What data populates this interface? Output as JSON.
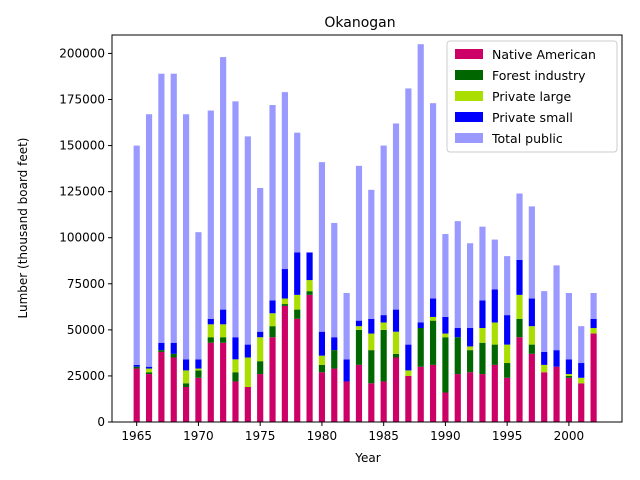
{
  "chart_data": {
    "type": "bar",
    "stacked": true,
    "title": "Okanogan",
    "xlabel": "Year",
    "ylabel": "Lumber (thousand board feet)",
    "xlim": [
      1963.0,
      2004.3
    ],
    "ylim": [
      0,
      210000
    ],
    "xticks": [
      1965,
      1970,
      1975,
      1980,
      1985,
      1990,
      1995,
      2000
    ],
    "yticks": [
      0,
      25000,
      50000,
      75000,
      100000,
      125000,
      150000,
      175000,
      200000
    ],
    "legend_position": "top-right",
    "grid": false,
    "x": [
      1965,
      1966,
      1967,
      1968,
      1969,
      1970,
      1971,
      1972,
      1973,
      1974,
      1975,
      1976,
      1977,
      1978,
      1979,
      1980,
      1981,
      1982,
      1983,
      1984,
      1985,
      1986,
      1987,
      1988,
      1989,
      1990,
      1991,
      1992,
      1993,
      1994,
      1995,
      1996,
      1997,
      1998,
      1999,
      2000,
      2001,
      2002
    ],
    "series": [
      {
        "name": "Native American",
        "color": "#cc0066",
        "values": [
          29000,
          26000,
          38000,
          35000,
          19000,
          24000,
          43000,
          43000,
          22000,
          19000,
          26000,
          46000,
          63000,
          56000,
          69000,
          27000,
          29000,
          22000,
          31000,
          21000,
          22000,
          35000,
          25000,
          30000,
          31000,
          16000,
          26000,
          27000,
          26000,
          31000,
          24000,
          46000,
          37000,
          27000,
          30000,
          24000,
          21000,
          48000
        ]
      },
      {
        "name": "Forest industry",
        "color": "#006600",
        "values": [
          1000,
          1000,
          1000,
          2000,
          2000,
          4000,
          3000,
          3000,
          5000,
          0,
          7000,
          6000,
          1000,
          5000,
          2000,
          4000,
          10000,
          0,
          19000,
          18000,
          28000,
          2000,
          0,
          21000,
          24000,
          30000,
          20000,
          12000,
          17000,
          11000,
          8000,
          10000,
          5000,
          0,
          0,
          1000,
          0,
          0
        ]
      },
      {
        "name": "Private large",
        "color": "#aadd00",
        "values": [
          0,
          2000,
          0,
          0,
          7000,
          1000,
          7000,
          7000,
          7000,
          16000,
          13000,
          7000,
          3000,
          8000,
          6000,
          5000,
          0,
          0,
          2000,
          9000,
          4000,
          12000,
          3000,
          0,
          2000,
          2000,
          0,
          2000,
          8000,
          12000,
          10000,
          13000,
          10000,
          4000,
          0,
          1000,
          3000,
          3000
        ]
      },
      {
        "name": "Private small",
        "color": "#0000ff",
        "values": [
          1000,
          1000,
          4000,
          6000,
          6000,
          5000,
          3000,
          8000,
          12000,
          7000,
          3000,
          7000,
          16000,
          23000,
          15000,
          13000,
          7000,
          12000,
          3000,
          8000,
          4000,
          12000,
          14000,
          3000,
          10000,
          9000,
          5000,
          10000,
          15000,
          18000,
          16000,
          19000,
          15000,
          7000,
          9000,
          8000,
          8000,
          5000
        ]
      },
      {
        "name": "Total public",
        "color": "#9999ff",
        "values": [
          119000,
          137000,
          146000,
          146000,
          133000,
          69000,
          113000,
          137000,
          128000,
          113000,
          78000,
          106000,
          96000,
          65000,
          0,
          92000,
          62000,
          36000,
          84000,
          70000,
          92000,
          101000,
          139000,
          151000,
          106000,
          45000,
          58000,
          46000,
          40000,
          27000,
          32000,
          36000,
          50000,
          33000,
          46000,
          36000,
          20000,
          14000
        ]
      }
    ]
  }
}
